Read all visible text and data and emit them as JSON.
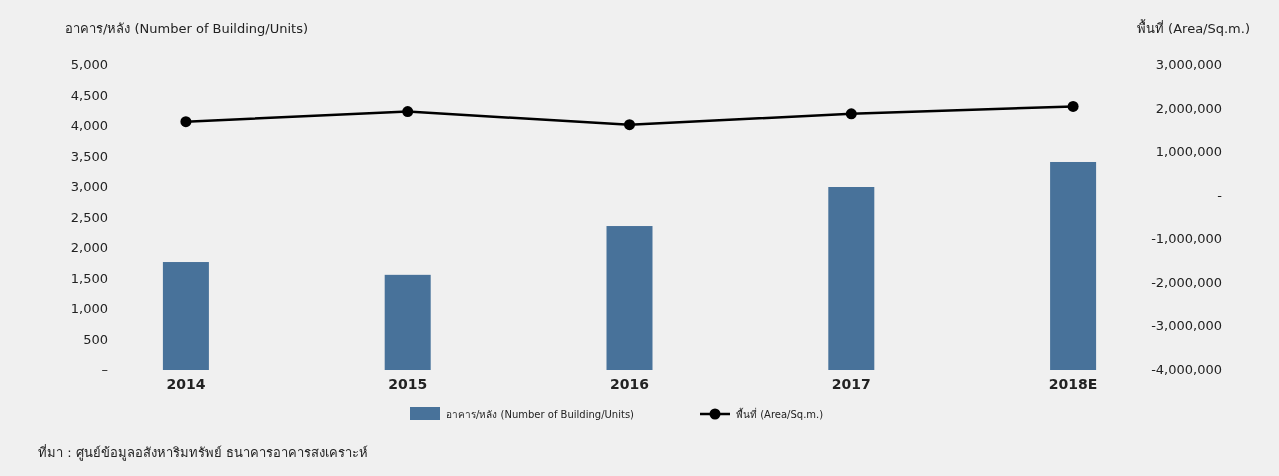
{
  "chart_data": {
    "type": "bar",
    "ylabel": "อาคาร/หลัง (Number of Building/Units)",
    "y2label": "พื้นที่ (Area/Sq.m.)",
    "categories": [
      "2014",
      "2015",
      "2016",
      "2017",
      "2018E"
    ],
    "series": [
      {
        "name": "อาคาร/หลัง (Number of Building/Units)",
        "color": "#48729a",
        "values": [
          1770,
          1560,
          2360,
          3000,
          3410
        ]
      },
      {
        "name": "พื้นที่ (Area/Sq.m.)",
        "type": "line",
        "axis": "y2",
        "color": "#000000",
        "marker": "circle",
        "values": [
          1700000,
          1930000,
          1630000,
          1880000,
          2050000
        ]
      }
    ],
    "ylim": [
      0,
      5000
    ],
    "yticks": [
      {
        "value": 0,
        "label": "–"
      },
      500,
      {
        "value": 1000,
        "label": "1,000"
      },
      {
        "value": 1500,
        "label": "1,500"
      },
      {
        "value": 2000,
        "label": "2,000"
      },
      {
        "value": 2500,
        "label": "2,500"
      },
      {
        "value": 3000,
        "label": "3,000"
      },
      {
        "value": 3500,
        "label": "3,500"
      },
      {
        "value": 4000,
        "label": "4,000"
      },
      {
        "value": 4500,
        "label": "4,500"
      },
      {
        "value": 5000,
        "label": "5,000"
      }
    ],
    "y2lim": [
      -4000000,
      3000000
    ],
    "y2ticks": [
      {
        "value": -4000000,
        "label": "-4,000,000"
      },
      {
        "value": -3000000,
        "label": "-3,000,000"
      },
      {
        "value": -2000000,
        "label": "-2,000,000"
      },
      {
        "value": -1000000,
        "label": "-1,000,000"
      },
      {
        "value": 0,
        "label": "-"
      },
      {
        "value": 1000000,
        "label": "1,000,000"
      },
      {
        "value": 2000000,
        "label": "2,000,000"
      },
      {
        "value": 3000000,
        "label": "3,000,000"
      }
    ],
    "legend": "bottom",
    "grid": false,
    "annotations": [
      "ที่มา : ศูนย์ข้อมูลอสังหาริมทรัพย์ ธนาคารอาคารสงเคราะห์"
    ]
  }
}
